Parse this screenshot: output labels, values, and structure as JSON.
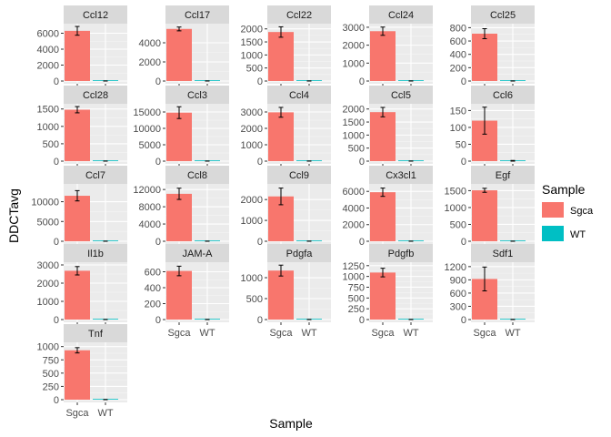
{
  "chart_data": {
    "type": "bar",
    "facet_layout": "5 columns, free y scales",
    "xlabel": "Sample",
    "ylabel": "DDCTavg",
    "categories": [
      "Sgca",
      "WT"
    ],
    "legend": {
      "title": "Sample",
      "position": "right",
      "entries": [
        {
          "name": "Sgca",
          "color": "#F8766D"
        },
        {
          "name": "WT",
          "color": "#00BFC4"
        }
      ]
    },
    "grid": true,
    "panel_background": "#EBEBEB",
    "strip_background": "#D9D9D9",
    "panels": [
      {
        "title": "Ccl12",
        "values": [
          6300,
          8
        ],
        "errors": [
          550,
          5
        ],
        "ylim": [
          0,
          7200
        ],
        "ticks": [
          0,
          2000,
          4000,
          6000
        ]
      },
      {
        "title": "Ccl17",
        "values": [
          5450,
          8
        ],
        "errors": [
          200,
          5
        ],
        "ylim": [
          0,
          6000
        ],
        "ticks": [
          0,
          2000,
          4000
        ]
      },
      {
        "title": "Ccl22",
        "values": [
          1880,
          3
        ],
        "errors": [
          200,
          2
        ],
        "ylim": [
          0,
          2200
        ],
        "ticks": [
          0,
          500,
          1000,
          1500,
          2000
        ]
      },
      {
        "title": "Ccl24",
        "values": [
          2780,
          5
        ],
        "errors": [
          230,
          3
        ],
        "ylim": [
          0,
          3200
        ],
        "ticks": [
          0,
          1000,
          2000,
          3000
        ]
      },
      {
        "title": "Ccl25",
        "values": [
          710,
          1
        ],
        "errors": [
          75,
          1
        ],
        "ylim": [
          0,
          860
        ],
        "ticks": [
          0,
          200,
          400,
          600,
          800
        ]
      },
      {
        "title": "Ccl28",
        "values": [
          1480,
          2
        ],
        "errors": [
          90,
          1
        ],
        "ylim": [
          0,
          1650
        ],
        "ticks": [
          0,
          500,
          1000,
          1500
        ]
      },
      {
        "title": "Ccl3",
        "values": [
          14800,
          20
        ],
        "errors": [
          1800,
          10
        ],
        "ylim": [
          0,
          17500
        ],
        "ticks": [
          0,
          5000,
          10000,
          15000
        ]
      },
      {
        "title": "Ccl4",
        "values": [
          2980,
          5
        ],
        "errors": [
          300,
          3
        ],
        "ylim": [
          0,
          3500
        ],
        "ticks": [
          0,
          1000,
          2000,
          3000
        ]
      },
      {
        "title": "Ccl5",
        "values": [
          1880,
          3
        ],
        "errors": [
          180,
          2
        ],
        "ylim": [
          0,
          2200
        ],
        "ticks": [
          0,
          500,
          1000,
          1500,
          2000
        ]
      },
      {
        "title": "Ccl6",
        "values": [
          120,
          1
        ],
        "errors": [
          40,
          1
        ],
        "ylim": [
          0,
          170
        ],
        "ticks": [
          0,
          50,
          100,
          150
        ]
      },
      {
        "title": "Ccl7",
        "values": [
          11500,
          15
        ],
        "errors": [
          1300,
          10
        ],
        "ylim": [
          0,
          14500
        ],
        "ticks": [
          0,
          5000,
          10000
        ]
      },
      {
        "title": "Ccl8",
        "values": [
          11000,
          15
        ],
        "errors": [
          1300,
          10
        ],
        "ylim": [
          0,
          13300
        ],
        "ticks": [
          0,
          4000,
          8000,
          12000
        ]
      },
      {
        "title": "Ccl9",
        "values": [
          2150,
          4
        ],
        "errors": [
          400,
          2
        ],
        "ylim": [
          0,
          2750
        ],
        "ticks": [
          0,
          1000,
          2000
        ]
      },
      {
        "title": "Cx3cl1",
        "values": [
          5900,
          8
        ],
        "errors": [
          500,
          5
        ],
        "ylim": [
          0,
          6900
        ],
        "ticks": [
          0,
          2000,
          4000,
          6000
        ]
      },
      {
        "title": "Egf",
        "values": [
          1510,
          2
        ],
        "errors": [
          60,
          1
        ],
        "ylim": [
          0,
          1700
        ],
        "ticks": [
          0,
          500,
          1000,
          1500
        ]
      },
      {
        "title": "Il1b",
        "values": [
          2680,
          4
        ],
        "errors": [
          230,
          2
        ],
        "ylim": [
          0,
          3150
        ],
        "ticks": [
          0,
          1000,
          2000,
          3000
        ]
      },
      {
        "title": "JAM-A",
        "values": [
          610,
          1
        ],
        "errors": [
          60,
          1
        ],
        "ylim": [
          0,
          720
        ],
        "ticks": [
          0,
          200,
          400,
          600
        ]
      },
      {
        "title": "Pdgfa",
        "values": [
          1170,
          2
        ],
        "errors": [
          130,
          1
        ],
        "ylim": [
          0,
          1370
        ],
        "ticks": [
          0,
          500,
          1000
        ]
      },
      {
        "title": "Pdgfb",
        "values": [
          1090,
          2
        ],
        "errors": [
          100,
          1
        ],
        "ylim": [
          0,
          1330
        ],
        "ticks": [
          0,
          250,
          500,
          750,
          1000,
          1250
        ]
      },
      {
        "title": "Sdf1",
        "values": [
          920,
          2
        ],
        "errors": [
          270,
          1
        ],
        "ylim": [
          0,
          1300
        ],
        "ticks": [
          0,
          300,
          600,
          900,
          1200
        ]
      },
      {
        "title": "Tnf",
        "values": [
          930,
          2
        ],
        "errors": [
          50,
          1
        ],
        "ylim": [
          0,
          1080
        ],
        "ticks": [
          0,
          250,
          500,
          750,
          1000
        ]
      }
    ]
  }
}
